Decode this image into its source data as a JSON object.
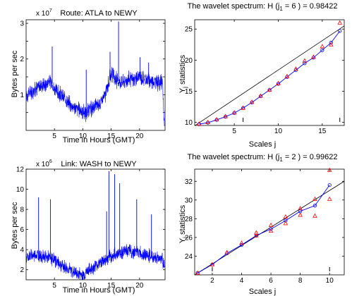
{
  "figure": {
    "background": "#ffffff"
  },
  "chart_data": [
    {
      "id": "top-left",
      "type": "line",
      "title": "Route: ATLA to NEWY",
      "exponent_base": "x 10",
      "exponent": "7",
      "xlabel": "Time in Hours (GMT)",
      "ylabel": "Bytes per sec",
      "xlim": [
        0,
        24.5
      ],
      "ylim": [
        0,
        3.1
      ],
      "xticks": [
        5,
        10,
        15,
        20
      ],
      "yticks": [
        0.5,
        1,
        1.5,
        2,
        2.5,
        3
      ],
      "ytick_labels": [
        "",
        "1",
        "",
        "2",
        "",
        "3"
      ],
      "grid": false,
      "color": "#0000ff",
      "series": [
        {
          "x": [
            0,
            1,
            2,
            3,
            3.5,
            4,
            4.6,
            5,
            6,
            7,
            8,
            9,
            10,
            10.5,
            11,
            12,
            13,
            14,
            14.5,
            15,
            15.5,
            16,
            17,
            18,
            19,
            20,
            21,
            22,
            23,
            24,
            24.4
          ],
          "y": [
            1.0,
            1.1,
            1.2,
            1.3,
            1.25,
            1.4,
            1.3,
            1.15,
            1.0,
            0.85,
            0.7,
            0.6,
            0.55,
            0.45,
            0.55,
            0.65,
            0.75,
            1.0,
            1.3,
            1.6,
            1.5,
            1.4,
            1.35,
            1.45,
            1.4,
            1.5,
            1.45,
            1.4,
            1.35,
            1.35,
            0.1
          ],
          "spikes": [
            {
              "x": 4.6,
              "y": 2.35
            },
            {
              "x": 10.6,
              "y": 1.7
            },
            {
              "x": 14.8,
              "y": 2.2
            },
            {
              "x": 16.3,
              "y": 3.05
            },
            {
              "x": 20.1,
              "y": 2.05
            },
            {
              "x": 21.6,
              "y": 1.9
            }
          ]
        }
      ]
    },
    {
      "id": "top-right",
      "type": "line",
      "title": "The wavelet spectrum: H (j",
      "title_subscript": "1",
      "title_rest": " = 6 ) = 0.98422",
      "xlabel": "Scales j",
      "ylabel_main": "Y",
      "ylabel_sub": "j",
      "ylabel_rest": " statistics",
      "xlim": [
        0.5,
        17.5
      ],
      "ylim": [
        9.5,
        26.5
      ],
      "xticks": [
        5,
        10,
        15
      ],
      "yticks": [
        10,
        15,
        20,
        25
      ],
      "grid": false,
      "markers": {
        "j1": 6,
        "j2": 17
      },
      "series": [
        {
          "color": "#0000ff",
          "marker": "circle",
          "x": [
            1,
            2,
            3,
            4,
            5,
            6,
            7,
            8,
            9,
            10,
            11,
            12,
            13,
            14,
            15,
            16,
            17
          ],
          "y": [
            9.7,
            9.95,
            10.4,
            10.9,
            11.5,
            12.3,
            13.2,
            14.2,
            15.2,
            16.2,
            17.3,
            18.4,
            19.5,
            20.4,
            21.6,
            22.8,
            24.7
          ]
        },
        {
          "color": "#ff0000",
          "marker": "triangle",
          "x": [
            1,
            2,
            3,
            4,
            5,
            6,
            7,
            8,
            9,
            10,
            11,
            12,
            13,
            14,
            15,
            16,
            17
          ],
          "y": [
            9.75,
            10.0,
            10.45,
            10.95,
            11.55,
            12.3,
            13.25,
            14.25,
            15.2,
            16.25,
            17.4,
            18.6,
            19.9,
            20.5,
            22.2,
            22.5,
            26.0
          ]
        }
      ],
      "fit_line": {
        "color": "#000000",
        "x": [
          0.5,
          17.5
        ],
        "y": [
          9.45,
          25.5
        ]
      }
    },
    {
      "id": "bottom-left",
      "type": "line",
      "title": "Link: WASH to NEWY",
      "exponent_base": "x 10",
      "exponent": "6",
      "xlabel": "Time in Hours (GMT)",
      "ylabel": "Bytes per sec",
      "xlim": [
        0,
        24.5
      ],
      "ylim": [
        1,
        12
      ],
      "xticks": [
        5,
        10,
        15,
        20
      ],
      "yticks": [
        2,
        4,
        6,
        8,
        10,
        12
      ],
      "grid": false,
      "color": "#0000ff",
      "series": [
        {
          "x": [
            0,
            1,
            2,
            3,
            4,
            5,
            6,
            7,
            8,
            9,
            10,
            11,
            12,
            13,
            14,
            15,
            16,
            17,
            18,
            19,
            20,
            21,
            22,
            23,
            24,
            24.4
          ],
          "y": [
            3.3,
            3.4,
            3.5,
            3.3,
            3.2,
            3.0,
            2.6,
            2.2,
            1.9,
            1.6,
            1.5,
            1.9,
            2.3,
            2.7,
            3.0,
            3.3,
            3.6,
            3.8,
            3.9,
            3.8,
            3.7,
            3.5,
            3.3,
            3.2,
            3.1,
            2.2
          ],
          "spikes": [
            {
              "x": 2.2,
              "y": 9.2
            },
            {
              "x": 4.3,
              "y": 9.0
            },
            {
              "x": 14.2,
              "y": 7.8
            },
            {
              "x": 14.6,
              "y": 11.8
            },
            {
              "x": 15.6,
              "y": 11.5
            },
            {
              "x": 16.5,
              "y": 10.6
            },
            {
              "x": 19.5,
              "y": 9.0
            },
            {
              "x": 22.1,
              "y": 7.5
            }
          ]
        }
      ]
    },
    {
      "id": "bottom-right",
      "type": "line",
      "title": "The wavelet spectrum: H (j",
      "title_subscript": "1",
      "title_rest": " = 2 ) = 0.99622",
      "xlabel": "Scales j",
      "ylabel_main": "Y",
      "ylabel_sub": "j",
      "ylabel_rest": " statistics",
      "xlim": [
        0.8,
        11
      ],
      "ylim": [
        22,
        33.3
      ],
      "xticks": [
        2,
        4,
        6,
        8,
        10
      ],
      "yticks": [
        24,
        26,
        28,
        30,
        32
      ],
      "grid": false,
      "markers": {
        "j1": 2,
        "j2": 10
      },
      "series": [
        {
          "color": "#0000ff",
          "marker": "circle",
          "x": [
            1,
            2,
            3,
            4,
            5,
            6,
            7,
            8,
            9,
            10
          ],
          "y": [
            22.2,
            23.1,
            24.3,
            25.2,
            26.2,
            26.9,
            27.8,
            28.8,
            29.4,
            31.6
          ]
        },
        {
          "color": "#ff0000",
          "marker": "triangle",
          "x": [
            1,
            2,
            3,
            4,
            5,
            5,
            6,
            6,
            7,
            7,
            8,
            8,
            9,
            9,
            10,
            10
          ],
          "y": [
            22.2,
            23.1,
            24.4,
            25.4,
            26.5,
            26.2,
            27.3,
            26.7,
            28.2,
            27.5,
            29.1,
            28.4,
            30.1,
            28.3,
            33.2,
            30.1
          ]
        }
      ],
      "fit_line": {
        "color": "#000000",
        "x": [
          0.8,
          11
        ],
        "y": [
          22.0,
          32.0
        ]
      }
    }
  ]
}
